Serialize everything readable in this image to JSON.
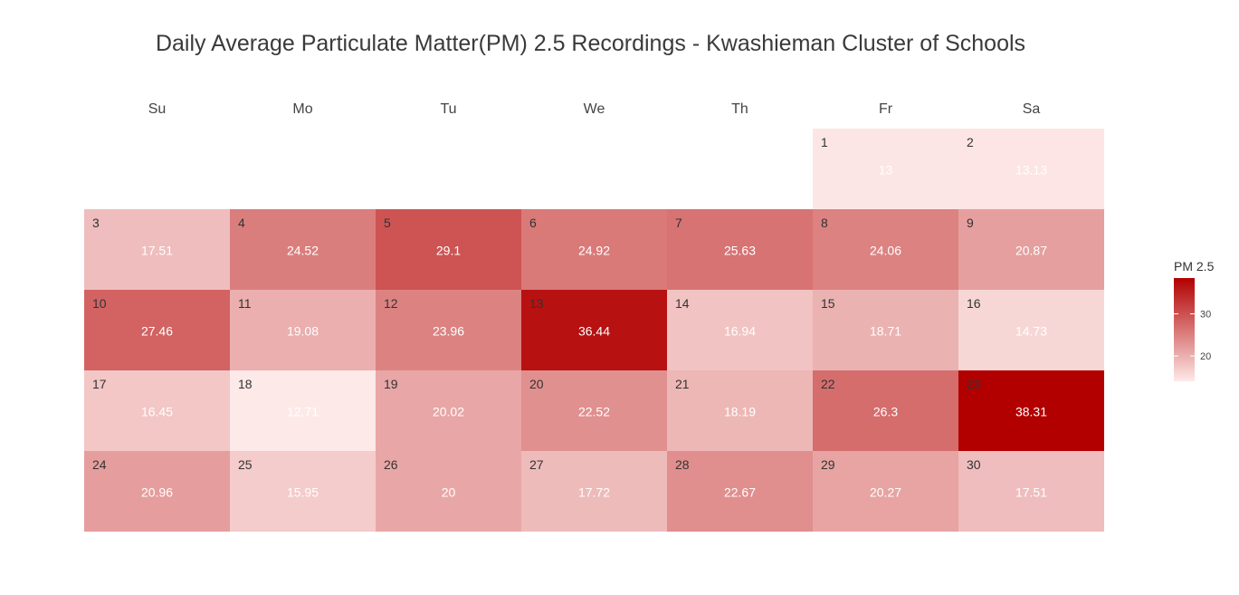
{
  "chart_data": {
    "type": "heatmap",
    "title": "Daily Average Particulate Matter(PM) 2.5 Recordings - Kwashieman Cluster of Schools",
    "weekdays": [
      "Su",
      "Mo",
      "Tu",
      "We",
      "Th",
      "Fr",
      "Sa"
    ],
    "first_weekday_index": 5,
    "days": [
      {
        "day": "1",
        "value": 13
      },
      {
        "day": "2",
        "value": 13.13
      },
      {
        "day": "3",
        "value": 17.51
      },
      {
        "day": "4",
        "value": 24.52
      },
      {
        "day": "5",
        "value": 29.1
      },
      {
        "day": "6",
        "value": 24.92
      },
      {
        "day": "7",
        "value": 25.63
      },
      {
        "day": "8",
        "value": 24.06
      },
      {
        "day": "9",
        "value": 20.87
      },
      {
        "day": "10",
        "value": 27.46
      },
      {
        "day": "11",
        "value": 19.08
      },
      {
        "day": "12",
        "value": 23.96
      },
      {
        "day": "13",
        "value": 36.44
      },
      {
        "day": "14",
        "value": 16.94
      },
      {
        "day": "15",
        "value": 18.71
      },
      {
        "day": "16",
        "value": 14.73
      },
      {
        "day": "17",
        "value": 16.45
      },
      {
        "day": "18",
        "value": 12.71
      },
      {
        "day": "19",
        "value": 20.02
      },
      {
        "day": "20",
        "value": 22.52
      },
      {
        "day": "21",
        "value": 18.19
      },
      {
        "day": "22",
        "value": 26.3
      },
      {
        "day": "23",
        "value": 38.31
      },
      {
        "day": "24",
        "value": 20.96
      },
      {
        "day": "25",
        "value": 15.95
      },
      {
        "day": "26",
        "value": 20
      },
      {
        "day": "27",
        "value": 17.72
      },
      {
        "day": "28",
        "value": 22.67
      },
      {
        "day": "29",
        "value": 20.27
      },
      {
        "day": "30",
        "value": 17.51
      }
    ],
    "color_scale": {
      "min": 12.71,
      "max": 38.31,
      "low_color": "#fde9e8",
      "high_color": "#b20000"
    },
    "legend": {
      "title": "PM 2.5",
      "ticks": [
        "20",
        "30"
      ],
      "tick_values": [
        20,
        30
      ],
      "placement": "right"
    }
  }
}
